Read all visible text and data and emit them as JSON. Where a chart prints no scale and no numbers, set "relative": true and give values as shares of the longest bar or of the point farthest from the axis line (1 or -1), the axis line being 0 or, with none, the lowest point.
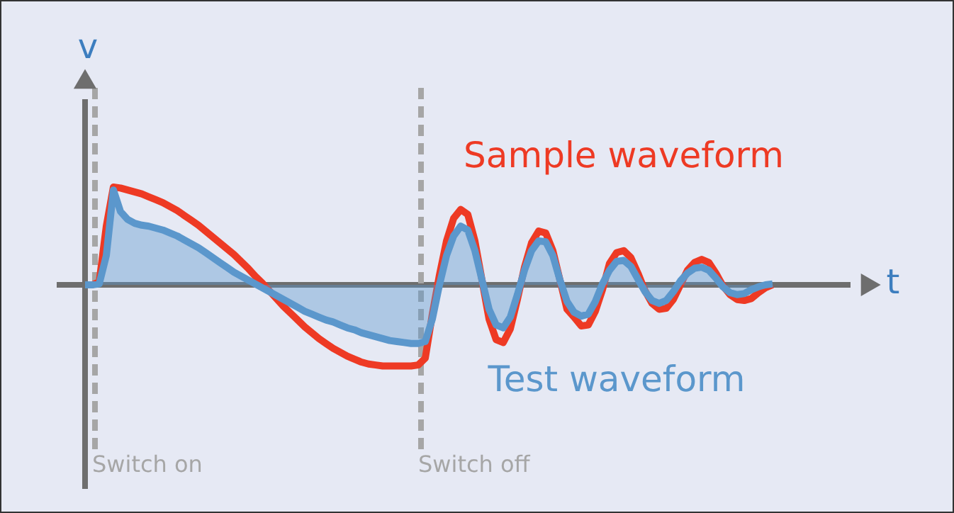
{
  "chart_data": {
    "type": "line",
    "relative": true,
    "xlabel": "t",
    "ylabel": "v",
    "marker": "none",
    "line_style": "solid",
    "categories": [
      null,
      null,
      null,
      null,
      null,
      null,
      null,
      null,
      null,
      null,
      null,
      null,
      null,
      null,
      null,
      null,
      null,
      null,
      null,
      null,
      null,
      null,
      null,
      null,
      null,
      null,
      null,
      null,
      null,
      null,
      null,
      null,
      null,
      null,
      null,
      null,
      null,
      null,
      null,
      null,
      null,
      null,
      null,
      null,
      null,
      null,
      null,
      null,
      null,
      null,
      null,
      null,
      null,
      null,
      null,
      null,
      null,
      null,
      null,
      null,
      null,
      null,
      null,
      null,
      null,
      null,
      null,
      null,
      null,
      null,
      null,
      null,
      null,
      null,
      null,
      null,
      null,
      null,
      null,
      null,
      null,
      null,
      null,
      null,
      null,
      null,
      null,
      null,
      null,
      null,
      null,
      null,
      null,
      null,
      null,
      null,
      null,
      null
    ],
    "series": [
      {
        "name": "Sample waveform",
        "color": "#ee3a24",
        "values": [
          0,
          0,
          0.03,
          0.6,
          1.0,
          0.99,
          0.97,
          0.95,
          0.93,
          0.9,
          0.87,
          0.84,
          0.8,
          0.76,
          0.71,
          0.66,
          0.61,
          0.55,
          0.49,
          0.43,
          0.37,
          0.31,
          0.24,
          0.17,
          0.09,
          0.02,
          -0.06,
          -0.14,
          -0.22,
          -0.29,
          -0.36,
          -0.43,
          -0.49,
          -0.55,
          -0.6,
          -0.65,
          -0.69,
          -0.73,
          -0.76,
          -0.79,
          -0.81,
          -0.82,
          -0.83,
          -0.83,
          -0.83,
          -0.83,
          -0.83,
          -0.82,
          -0.75,
          -0.3,
          0.1,
          0.45,
          0.68,
          0.77,
          0.72,
          0.45,
          0.05,
          -0.35,
          -0.56,
          -0.59,
          -0.45,
          -0.15,
          0.18,
          0.43,
          0.55,
          0.53,
          0.35,
          0.05,
          -0.25,
          -0.33,
          -0.42,
          -0.41,
          -0.27,
          -0.05,
          0.22,
          0.33,
          0.35,
          0.28,
          0.12,
          -0.06,
          -0.19,
          -0.25,
          -0.24,
          -0.15,
          0.0,
          0.15,
          0.23,
          0.26,
          0.23,
          0.12,
          -0.01,
          -0.1,
          -0.15,
          -0.16,
          -0.14,
          -0.08,
          -0.03,
          0.0
        ]
      },
      {
        "name": "Test waveform",
        "type": "area",
        "color": "#5b97cc",
        "values": [
          0,
          0,
          0.01,
          0.3,
          0.97,
          0.75,
          0.67,
          0.63,
          0.61,
          0.6,
          0.58,
          0.56,
          0.53,
          0.5,
          0.46,
          0.42,
          0.38,
          0.33,
          0.28,
          0.23,
          0.18,
          0.13,
          0.09,
          0.05,
          0.01,
          -0.03,
          -0.07,
          -0.11,
          -0.15,
          -0.19,
          -0.23,
          -0.27,
          -0.3,
          -0.33,
          -0.36,
          -0.38,
          -0.41,
          -0.44,
          -0.46,
          -0.49,
          -0.51,
          -0.53,
          -0.55,
          -0.57,
          -0.58,
          -0.59,
          -0.6,
          -0.6,
          -0.58,
          -0.35,
          0.0,
          0.3,
          0.5,
          0.6,
          0.56,
          0.35,
          0.05,
          -0.25,
          -0.41,
          -0.44,
          -0.33,
          -0.1,
          0.15,
          0.35,
          0.45,
          0.44,
          0.3,
          0.05,
          -0.17,
          -0.28,
          -0.32,
          -0.3,
          -0.17,
          0.01,
          0.15,
          0.24,
          0.25,
          0.19,
          0.06,
          -0.07,
          -0.16,
          -0.19,
          -0.16,
          -0.07,
          0.04,
          0.12,
          0.17,
          0.18,
          0.15,
          0.07,
          -0.02,
          -0.08,
          -0.1,
          -0.09,
          -0.05,
          -0.02,
          0.0,
          0.01
        ]
      }
    ],
    "annotations": [
      "Switch on",
      "Switch off"
    ]
  }
}
